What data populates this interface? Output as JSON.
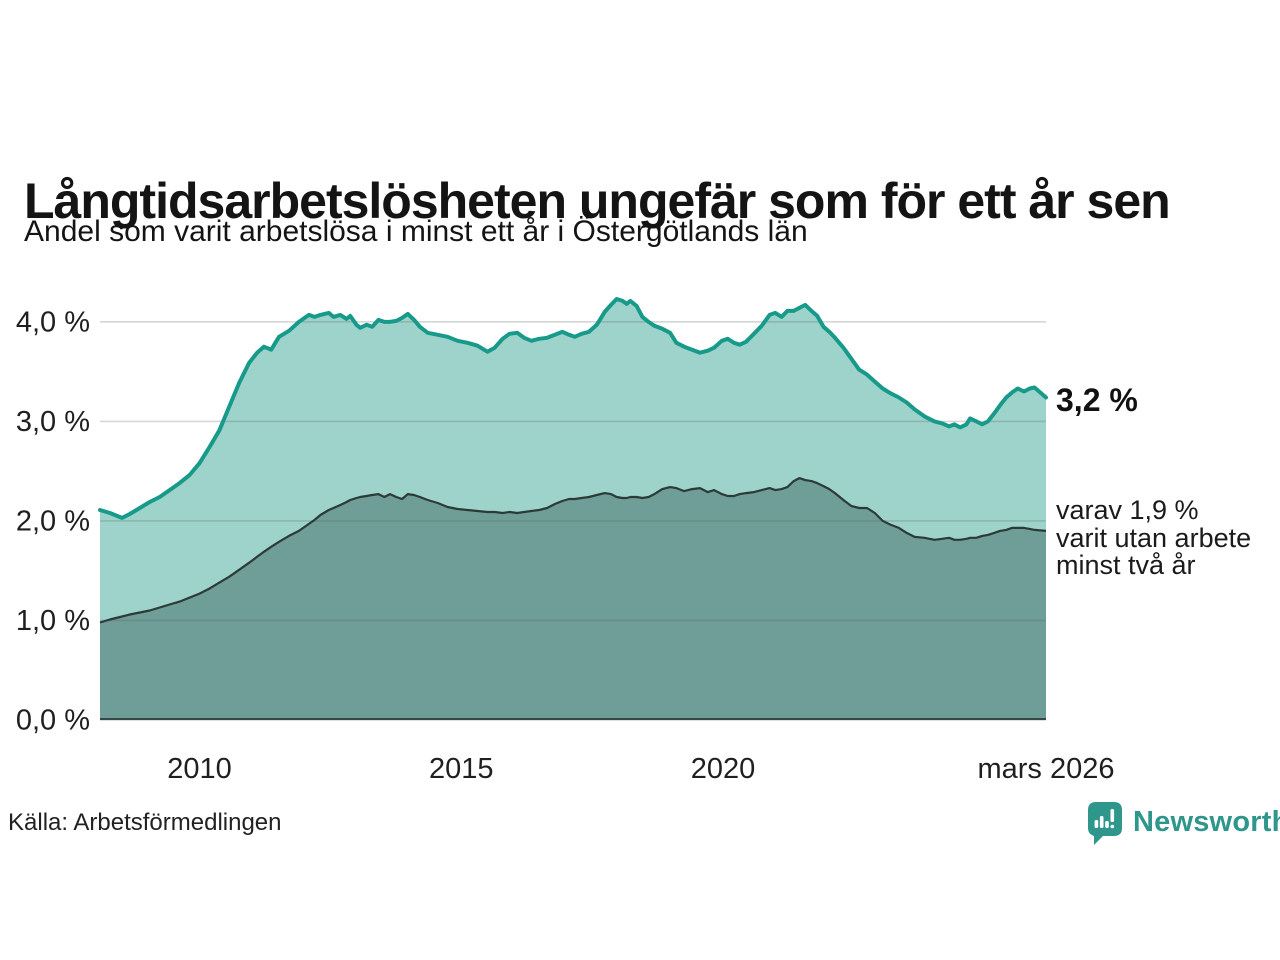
{
  "page": {
    "title": "Långtidsarbetslösheten ungefär som för ett år sen",
    "subtitle": "Andel som varit arbetslösa i minst ett år i Östergötlands län",
    "source": "Källa: Arbetsförmedlingen",
    "brand": "Newsworthy",
    "brand_color": "#2f968c"
  },
  "annotations": {
    "total_label": "3,2 %",
    "secondary_lines": [
      "varav 1,9 %",
      "varit utan arbete",
      "minst två år"
    ]
  },
  "colors": {
    "background": "#ffffff",
    "title_text": "#141414",
    "tick_text": "#1f1f1f",
    "grid": "#5a645f",
    "total_line": "#179a8a",
    "total_fill": "#9ed3cb",
    "two_year_line": "#2c3b38",
    "two_year_fill": "#6f9d97"
  },
  "chart_data": {
    "type": "area",
    "title": "Långtidsarbetslösheten ungefär som för ett år sen",
    "subtitle": "Andel som varit arbetslösa i minst ett år i Östergötlands län",
    "xlabel": "",
    "ylabel": "",
    "xlim": [
      2008.1,
      2026.17
    ],
    "ylim": [
      0,
      4.32
    ],
    "grid": true,
    "grid_color": "#5a645f",
    "grid_opacity": 0.26,
    "legend": "end-labels",
    "yticks": [
      {
        "v": 0,
        "label": "0,0 %"
      },
      {
        "v": 1,
        "label": "1,0 %"
      },
      {
        "v": 2,
        "label": "2,0 %"
      },
      {
        "v": 3,
        "label": "3,0 %"
      },
      {
        "v": 4,
        "label": "4,0 %"
      }
    ],
    "xticks": [
      {
        "x": 2010,
        "label": "2010"
      },
      {
        "x": 2015,
        "label": "2015"
      },
      {
        "x": 2020,
        "label": "2020"
      },
      {
        "x": 2026.17,
        "label": "mars 2026"
      }
    ],
    "x": [
      2008.1,
      2008.29,
      2008.52,
      2008.67,
      2008.86,
      2009.05,
      2009.24,
      2009.43,
      2009.62,
      2009.81,
      2010.0,
      2010.19,
      2010.38,
      2010.57,
      2010.76,
      2010.95,
      2011.1,
      2011.23,
      2011.37,
      2011.52,
      2011.71,
      2011.9,
      2012.09,
      2012.2,
      2012.31,
      2012.47,
      2012.56,
      2012.69,
      2012.81,
      2012.88,
      2013.0,
      2013.07,
      2013.19,
      2013.3,
      2013.42,
      2013.53,
      2013.64,
      2013.76,
      2013.87,
      2013.98,
      2014.1,
      2014.21,
      2014.36,
      2014.55,
      2014.74,
      2014.93,
      2015.12,
      2015.31,
      2015.5,
      2015.64,
      2015.79,
      2015.92,
      2016.07,
      2016.2,
      2016.34,
      2016.49,
      2016.64,
      2016.79,
      2016.93,
      2017.06,
      2017.17,
      2017.3,
      2017.44,
      2017.59,
      2017.74,
      2017.86,
      2017.97,
      2018.08,
      2018.16,
      2018.23,
      2018.35,
      2018.46,
      2018.58,
      2018.69,
      2018.84,
      2018.99,
      2019.11,
      2019.26,
      2019.41,
      2019.56,
      2019.71,
      2019.83,
      2019.98,
      2020.09,
      2020.21,
      2020.32,
      2020.44,
      2020.59,
      2020.74,
      2020.89,
      2021.0,
      2021.12,
      2021.23,
      2021.35,
      2021.46,
      2021.57,
      2021.69,
      2021.8,
      2021.92,
      2022.03,
      2022.14,
      2022.3,
      2022.45,
      2022.6,
      2022.75,
      2022.9,
      2023.05,
      2023.21,
      2023.36,
      2023.51,
      2023.66,
      2023.85,
      2024.04,
      2024.19,
      2024.32,
      2024.42,
      2024.53,
      2024.65,
      2024.72,
      2024.84,
      2024.95,
      2025.06,
      2025.18,
      2025.29,
      2025.41,
      2025.52,
      2025.63,
      2025.75,
      2025.86,
      2025.95,
      2026.17
    ],
    "series": [
      {
        "name": "Andel som varit arbetslösa i minst ett år",
        "end_label": "3,2 %",
        "end_value": 3.2,
        "line_color": "#179a8a",
        "fill_color": "#9ed3cb",
        "values": [
          2.11,
          2.08,
          2.03,
          2.07,
          2.13,
          2.19,
          2.24,
          2.31,
          2.38,
          2.46,
          2.58,
          2.74,
          2.91,
          3.15,
          3.39,
          3.59,
          3.69,
          3.75,
          3.72,
          3.85,
          3.91,
          4.0,
          4.07,
          4.05,
          4.07,
          4.09,
          4.05,
          4.07,
          4.03,
          4.06,
          3.97,
          3.94,
          3.97,
          3.95,
          4.02,
          4.0,
          4.0,
          4.01,
          4.04,
          4.08,
          4.02,
          3.95,
          3.89,
          3.87,
          3.85,
          3.81,
          3.79,
          3.76,
          3.7,
          3.74,
          3.83,
          3.88,
          3.89,
          3.84,
          3.81,
          3.83,
          3.84,
          3.87,
          3.9,
          3.87,
          3.85,
          3.88,
          3.9,
          3.97,
          4.1,
          4.17,
          4.23,
          4.21,
          4.18,
          4.21,
          4.16,
          4.05,
          4.0,
          3.96,
          3.93,
          3.89,
          3.79,
          3.75,
          3.72,
          3.69,
          3.71,
          3.74,
          3.81,
          3.83,
          3.79,
          3.77,
          3.8,
          3.88,
          3.96,
          4.07,
          4.09,
          4.05,
          4.11,
          4.11,
          4.14,
          4.17,
          4.11,
          4.06,
          3.95,
          3.9,
          3.84,
          3.74,
          3.63,
          3.52,
          3.47,
          3.4,
          3.33,
          3.28,
          3.24,
          3.19,
          3.12,
          3.05,
          3.0,
          2.98,
          2.95,
          2.97,
          2.94,
          2.97,
          3.03,
          3.0,
          2.97,
          3.0,
          3.08,
          3.16,
          3.24,
          3.29,
          3.33,
          3.3,
          3.33,
          3.34,
          3.24
        ]
      },
      {
        "name": "Varav utan arbete minst två år",
        "end_label": "varav 1,9 % varit utan arbete minst två år",
        "end_value": 1.9,
        "line_color": "#2c3b38",
        "fill_color": "#6f9d97",
        "values": [
          0.98,
          1.01,
          1.04,
          1.06,
          1.08,
          1.1,
          1.13,
          1.16,
          1.19,
          1.23,
          1.27,
          1.32,
          1.38,
          1.44,
          1.51,
          1.58,
          1.64,
          1.69,
          1.74,
          1.79,
          1.85,
          1.9,
          1.97,
          2.01,
          2.06,
          2.11,
          2.13,
          2.16,
          2.19,
          2.21,
          2.23,
          2.24,
          2.25,
          2.26,
          2.27,
          2.24,
          2.27,
          2.24,
          2.22,
          2.27,
          2.26,
          2.24,
          2.21,
          2.18,
          2.14,
          2.12,
          2.11,
          2.1,
          2.09,
          2.09,
          2.08,
          2.09,
          2.08,
          2.09,
          2.1,
          2.11,
          2.13,
          2.17,
          2.2,
          2.22,
          2.22,
          2.23,
          2.24,
          2.26,
          2.28,
          2.27,
          2.24,
          2.23,
          2.23,
          2.24,
          2.24,
          2.23,
          2.24,
          2.27,
          2.32,
          2.34,
          2.33,
          2.3,
          2.32,
          2.33,
          2.29,
          2.31,
          2.27,
          2.25,
          2.25,
          2.27,
          2.28,
          2.29,
          2.31,
          2.33,
          2.31,
          2.32,
          2.34,
          2.4,
          2.43,
          2.41,
          2.4,
          2.38,
          2.35,
          2.32,
          2.28,
          2.21,
          2.15,
          2.13,
          2.13,
          2.08,
          2.0,
          1.96,
          1.93,
          1.88,
          1.84,
          1.83,
          1.81,
          1.82,
          1.83,
          1.81,
          1.81,
          1.82,
          1.83,
          1.83,
          1.85,
          1.86,
          1.88,
          1.9,
          1.91,
          1.93,
          1.93,
          1.93,
          1.92,
          1.91,
          1.9
        ]
      }
    ]
  }
}
